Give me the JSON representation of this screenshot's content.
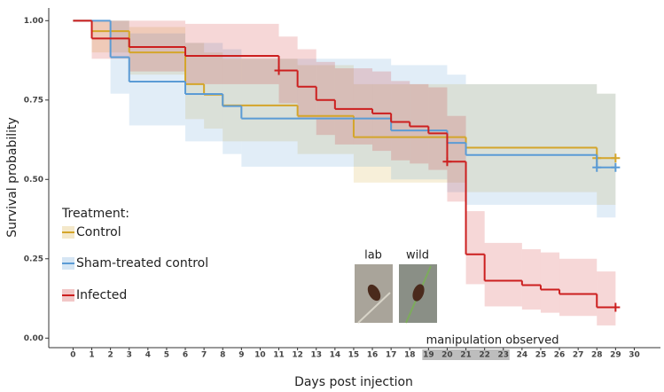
{
  "chart_data": {
    "type": "survival",
    "y_label": "Survival probability",
    "x_label": "Days post injection",
    "xlim": [
      -1.3,
      31.4
    ],
    "ylim": [
      -0.03,
      1.04
    ],
    "xticks": [
      0,
      1,
      2,
      3,
      4,
      5,
      6,
      7,
      8,
      9,
      10,
      11,
      12,
      13,
      14,
      15,
      16,
      17,
      18,
      19,
      20,
      21,
      22,
      23,
      24,
      25,
      26,
      27,
      28,
      29,
      30
    ],
    "yticks": [
      {
        "value": 0,
        "label": "0.00"
      },
      {
        "value": 0.25,
        "label": "0.25"
      },
      {
        "value": 0.5,
        "label": "0.50"
      },
      {
        "value": 0.75,
        "label": "0.75"
      },
      {
        "value": 1,
        "label": "1.00"
      }
    ],
    "xend": 29,
    "legend_title": "Treatment:",
    "highlight": {
      "range": [
        19,
        23
      ],
      "label": "manipulation observed"
    },
    "images": [
      "lab",
      "wild"
    ],
    "series": [
      {
        "name": "Control",
        "color": "#d4a52a",
        "x": [
          0,
          1,
          3,
          6,
          7,
          8,
          12,
          15,
          21,
          28
        ],
        "values": [
          1,
          0.967,
          0.9,
          0.8,
          0.767,
          0.733,
          0.7,
          0.633,
          0.6,
          0.567
        ],
        "lower": [
          1,
          0.9,
          0.83,
          0.69,
          0.66,
          0.62,
          0.58,
          0.49,
          0.46,
          0.42
        ],
        "upper": [
          1,
          1,
          0.98,
          0.93,
          0.9,
          0.88,
          0.86,
          0.8,
          0.8,
          0.77
        ],
        "censored_x": [
          28,
          29
        ],
        "censored_values": [
          0.567,
          0.567
        ]
      },
      {
        "name": "Sham-treated control",
        "color": "#5b9bd5",
        "x": [
          0,
          2,
          3,
          6,
          8,
          9,
          17,
          20,
          21,
          28
        ],
        "values": [
          1,
          0.885,
          0.808,
          0.769,
          0.731,
          0.692,
          0.654,
          0.615,
          0.577,
          0.538
        ],
        "lower": [
          1,
          0.77,
          0.67,
          0.62,
          0.58,
          0.54,
          0.5,
          0.46,
          0.42,
          0.38
        ],
        "upper": [
          1,
          1,
          0.96,
          0.93,
          0.91,
          0.88,
          0.86,
          0.83,
          0.8,
          0.77
        ],
        "censored_x": [
          28,
          29
        ],
        "censored_values": [
          0.538,
          0.538
        ]
      },
      {
        "name": "Infected",
        "color": "#cc1f1f",
        "x": [
          0,
          1,
          3,
          6,
          11,
          12,
          13,
          14,
          16,
          17,
          18,
          19,
          20,
          21,
          22,
          24,
          25,
          26,
          28
        ],
        "values": [
          1,
          0.944,
          0.917,
          0.889,
          0.843,
          0.792,
          0.75,
          0.722,
          0.708,
          0.681,
          0.667,
          0.645,
          0.556,
          0.264,
          0.181,
          0.167,
          0.153,
          0.139,
          0.097
        ],
        "lower": [
          1,
          0.88,
          0.84,
          0.8,
          0.74,
          0.69,
          0.64,
          0.61,
          0.59,
          0.56,
          0.55,
          0.53,
          0.43,
          0.17,
          0.1,
          0.09,
          0.08,
          0.07,
          0.04
        ],
        "upper": [
          1,
          1,
          1,
          0.99,
          0.95,
          0.91,
          0.87,
          0.85,
          0.84,
          0.81,
          0.8,
          0.79,
          0.7,
          0.4,
          0.3,
          0.28,
          0.27,
          0.25,
          0.21
        ],
        "censored_x": [
          11,
          20,
          29
        ],
        "censored_values": [
          0.843,
          0.556,
          0.097
        ]
      }
    ]
  }
}
